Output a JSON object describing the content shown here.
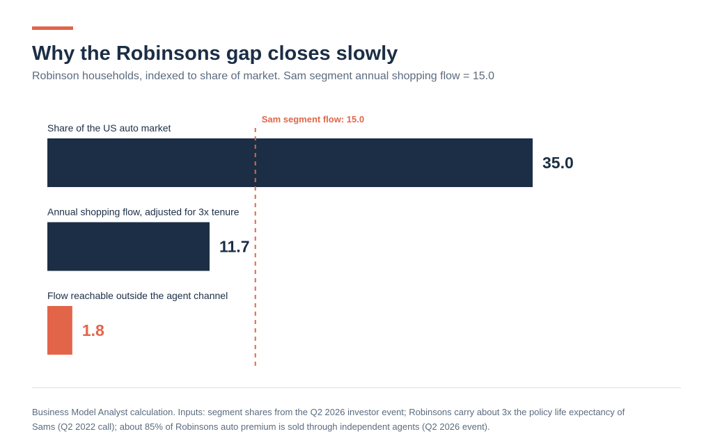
{
  "header": {
    "title": "Why the Robinsons gap closes slowly",
    "subtitle": "Robinson households, indexed to share of market. Sam segment annual shopping flow = 15.0"
  },
  "footer": {
    "note": "Business Model Analyst calculation. Inputs: segment shares from the Q2 2026 investor event; Robinsons carry about 3x the policy life expectancy of Sams (Q2 2022 call); about 85% of Robinsons auto premium is sold through independent agents (Q2 2026 event)."
  },
  "colors": {
    "navy": "#1b2e45",
    "accent": "#e2654a",
    "subtitle": "#5b6b7e",
    "divider": "#dcdfe3",
    "footnote": "#5b6b7e"
  },
  "chart_data": {
    "type": "bar",
    "orientation": "horizontal",
    "categories": [
      "Share of the US auto market",
      "Annual shopping flow, adjusted for 3x tenure",
      "Flow reachable outside the agent channel"
    ],
    "values": [
      35.0,
      11.7,
      1.8
    ],
    "value_labels": [
      "35.0",
      "11.7",
      "1.8"
    ],
    "bar_colors": [
      "#1b2e45",
      "#1b2e45",
      "#e2654a"
    ],
    "reference_line": {
      "value": 15.0,
      "label": "Sam segment flow: 15.0",
      "style": "dashed",
      "color": "#e2654a"
    },
    "xlim": [
      0,
      35.0
    ],
    "grid": false,
    "legend": "none"
  }
}
